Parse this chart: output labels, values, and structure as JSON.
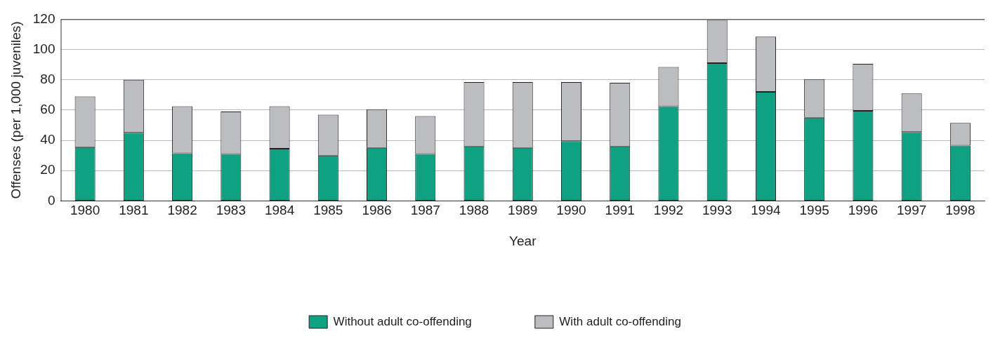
{
  "chart_data": {
    "type": "bar",
    "stacked": true,
    "xlabel": "Year",
    "ylabel": "Offenses (per 1,000 juveniles)",
    "categories": [
      "1980",
      "1981",
      "1982",
      "1983",
      "1984",
      "1985",
      "1986",
      "1987",
      "1988",
      "1989",
      "1990",
      "1991",
      "1992",
      "1993",
      "1994",
      "1995",
      "1996",
      "1997",
      "1998"
    ],
    "series": [
      {
        "name": "Without adult co-offending",
        "color": "#0ea283",
        "values": [
          35.5,
          45,
          31.5,
          31,
          34.5,
          30,
          35,
          31,
          36,
          35,
          39.5,
          36,
          62.5,
          91,
          72,
          55,
          59.5,
          45.5,
          36.5
        ]
      },
      {
        "name": "With adult co-offending",
        "color": "#bcbdc1",
        "values": [
          33.5,
          35,
          31,
          28,
          28,
          27,
          25.5,
          25,
          42.5,
          43.5,
          39,
          42,
          26,
          28.5,
          36.5,
          25.5,
          31,
          25.5,
          15
        ]
      }
    ],
    "ylim": [
      0,
      120
    ],
    "yticks": [
      0,
      20,
      40,
      60,
      80,
      100,
      120
    ],
    "grid": "y",
    "legend": "bottom"
  }
}
